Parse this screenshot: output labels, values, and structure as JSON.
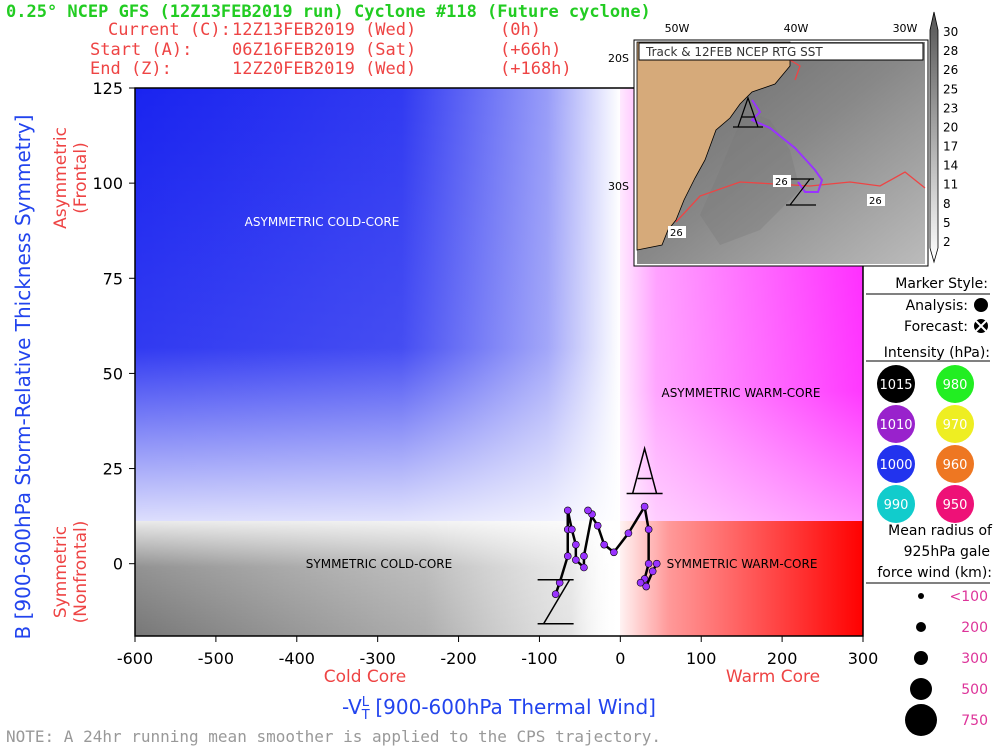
{
  "header": {
    "title": "0.25° NCEP GFS (12Z13FEB2019 run) Cyclone #118 (Future cyclone)",
    "current_label": "Current (C):",
    "current_time": "12Z13FEB2019 (Wed)",
    "current_offset": "(0h)",
    "start_label": "Start (A):",
    "start_time": "06Z16FEB2019 (Sat)",
    "start_offset": "(+66h)",
    "end_label": "End (Z):",
    "end_time": "12Z20FEB2019 (Wed)",
    "end_offset": "(+168h)"
  },
  "note": "NOTE: A 24hr running mean smoother is applied to the CPS trajectory.",
  "colors": {
    "title_green": "#22cc22",
    "header_red": "#ee4444",
    "axis_blue": "#2244ee",
    "cold_blue": "#1a24f0",
    "warm_magenta": "#ff22ff",
    "warm_red": "#ff0000",
    "track_purple": "#9933ff"
  },
  "chart_data": {
    "type": "scatter",
    "xlabel": "-Vᴛᴸ [900-600hPa Thermal Wind]",
    "xlabel_main": "-V",
    "xlabel_sub": "T",
    "xlabel_sup": "L",
    "xlabel_rest": " [900-600hPa Thermal Wind]",
    "ylabel": "B [900-600hPa Storm-Relative Thickness Symmetry]",
    "xlim": [
      -600,
      300
    ],
    "ylim": [
      -19,
      125
    ],
    "x_ticks": [
      -600,
      -500,
      -400,
      -300,
      -200,
      -100,
      0,
      100,
      200,
      300
    ],
    "y_ticks": [
      0,
      25,
      50,
      75,
      100,
      125
    ],
    "x_side_labels": {
      "left": "Cold Core",
      "right": "Warm Core"
    },
    "y_side_labels": {
      "upper": [
        "Asymmetric",
        "(Frontal)"
      ],
      "lower": [
        "Symmetric",
        "(Nonfrontal)"
      ]
    },
    "quadrant_labels": {
      "asym_cold": "ASYMMETRIC COLD-CORE",
      "asym_warm": "ASYMMETRIC WARM-CORE",
      "sym_cold": "SYMMETRIC COLD-CORE",
      "sym_warm": "SYMMETRIC WARM-CORE"
    },
    "threshold_b": 10,
    "threshold_v": 0,
    "track": [
      {
        "x": 45,
        "y": 0
      },
      {
        "x": 40,
        "y": 4
      },
      {
        "x": 35,
        "y": 9
      },
      {
        "x": 30,
        "y": 15
      },
      {
        "x": 10,
        "y": 8
      },
      {
        "x": -8,
        "y": 3
      },
      {
        "x": -20,
        "y": 5
      },
      {
        "x": -28,
        "y": 10
      },
      {
        "x": -35,
        "y": 13
      },
      {
        "x": -20,
        "y": 5
      },
      {
        "x": -15,
        "y": 4
      },
      {
        "x": -20,
        "y": 3
      },
      {
        "x": -35,
        "y": 10
      },
      {
        "x": -35,
        "y": 13
      },
      {
        "x": -40,
        "y": 14
      },
      {
        "x": -35,
        "y": 13
      },
      {
        "x": -45,
        "y": 2
      },
      {
        "x": -45,
        "y": -1
      },
      {
        "x": -55,
        "y": 1
      },
      {
        "x": -55,
        "y": 5
      },
      {
        "x": -60,
        "y": 9
      },
      {
        "x": -65,
        "y": 14
      },
      {
        "x": -65,
        "y": 9
      },
      {
        "x": -65,
        "y": 2
      },
      {
        "x": -75,
        "y": -5
      },
      {
        "x": -80,
        "y": -8
      }
    ],
    "track_points": [
      {
        "x": -80,
        "y": -8
      },
      {
        "x": -75,
        "y": -5
      },
      {
        "x": -65,
        "y": 2
      },
      {
        "x": -65,
        "y": 9
      },
      {
        "x": -65,
        "y": 14
      },
      {
        "x": -60,
        "y": 9
      },
      {
        "x": -55,
        "y": 5
      },
      {
        "x": -55,
        "y": 1
      },
      {
        "x": -45,
        "y": -1
      },
      {
        "x": -45,
        "y": 2
      },
      {
        "x": -35,
        "y": 13
      },
      {
        "x": -40,
        "y": 14
      },
      {
        "x": -28,
        "y": 10
      },
      {
        "x": -20,
        "y": 5
      },
      {
        "x": -8,
        "y": 3
      },
      {
        "x": 10,
        "y": 8
      },
      {
        "x": 30,
        "y": 15
      },
      {
        "x": 35,
        "y": 9
      },
      {
        "x": 35,
        "y": 0
      },
      {
        "x": 30,
        "y": -4
      },
      {
        "x": 25,
        "y": -5
      },
      {
        "x": 32,
        "y": -6
      },
      {
        "x": 40,
        "y": -2
      },
      {
        "x": 45,
        "y": 0
      }
    ],
    "start_marker": {
      "label": "A",
      "x": 30,
      "y": 25
    },
    "end_marker": {
      "label": "Z",
      "x": -80,
      "y": -10
    }
  },
  "inset": {
    "title": "Track & 12FEB NCEP RTG SST",
    "lon_labels": [
      "50W",
      "40W",
      "30W"
    ],
    "lat_labels": [
      "20S",
      "30S"
    ],
    "contour_labels": [
      "26",
      "26",
      "26"
    ],
    "colorbar_ticks": [
      "30",
      "28",
      "26",
      "25",
      "23",
      "20",
      "17",
      "14",
      "11",
      "8",
      "5",
      "2"
    ]
  },
  "legend": {
    "marker_style_title": "Marker Style:",
    "analysis_label": "Analysis:",
    "forecast_label": "Forecast:",
    "intensity_title": "Intensity (hPa):",
    "intensity": [
      {
        "value": "1015",
        "color": "#000000"
      },
      {
        "value": "980",
        "color": "#22ee22"
      },
      {
        "value": "1010",
        "color": "#9922cc"
      },
      {
        "value": "970",
        "color": "#eeee22"
      },
      {
        "value": "1000",
        "color": "#2233ee"
      },
      {
        "value": "960",
        "color": "#ee7722"
      },
      {
        "value": "990",
        "color": "#11cccc"
      },
      {
        "value": "950",
        "color": "#ee1177"
      }
    ],
    "radius_title": [
      "Mean radius of",
      "925hPa gale",
      "force wind (km):"
    ],
    "radius": [
      "<100",
      "200",
      "300",
      "500",
      "750"
    ]
  }
}
